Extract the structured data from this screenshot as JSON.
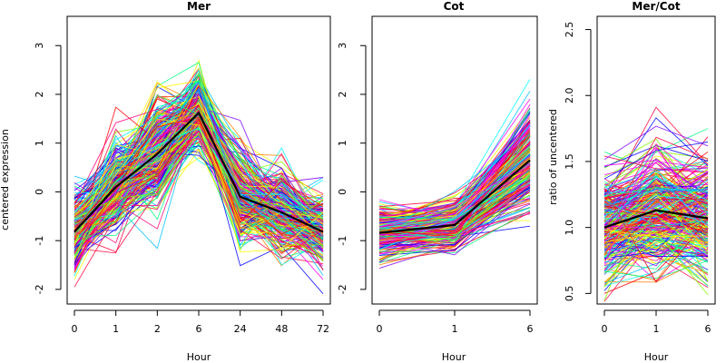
{
  "chart_data": [
    {
      "type": "line",
      "title": "Mer",
      "xlabel": "Hour",
      "ylabel": "centered expression",
      "x": [
        "0",
        "1",
        "2",
        "6",
        "24",
        "48",
        "72"
      ],
      "xticks": [
        "0",
        "1",
        "2",
        "6",
        "24",
        "48",
        "72"
      ],
      "ylim": [
        -2.3,
        3.6
      ],
      "yticks": [
        "-2",
        "-1",
        "0",
        "1",
        "2",
        "3"
      ],
      "grid": false,
      "legend": "none",
      "mean_series": {
        "values": [
          -0.82,
          0.1,
          0.78,
          1.62,
          -0.1,
          -0.42,
          -0.82
        ],
        "color": "#000000"
      },
      "profile_count_estimate": 300,
      "profile_spread": [
        0.35,
        0.45,
        0.55,
        0.35,
        0.45,
        0.4,
        0.35
      ],
      "profile_colors": [
        "#ff0040",
        "#ff0080",
        "#ff00ff",
        "#0000ff",
        "#00bfff",
        "#00ff80",
        "#80ff00",
        "#ffff00",
        "#ff8000",
        "#ff0000",
        "#8000ff",
        "#00ffff"
      ]
    },
    {
      "type": "line",
      "title": "Cot",
      "xlabel": "Hour",
      "ylabel": "",
      "x": [
        "0",
        "1",
        "6"
      ],
      "xticks": [
        "0",
        "1",
        "6"
      ],
      "ylim": [
        -2.3,
        3.6
      ],
      "yticks": [
        "-2",
        "-1",
        "0",
        "1",
        "2",
        "3"
      ],
      "grid": false,
      "legend": "none",
      "mean_series": {
        "values": [
          -0.84,
          -0.68,
          0.65
        ],
        "color": "#000000"
      },
      "profile_count_estimate": 300,
      "profile_spread": [
        0.22,
        0.18,
        0.45
      ],
      "profile_colors": [
        "#ff0040",
        "#ff0080",
        "#ff00ff",
        "#0000ff",
        "#00bfff",
        "#00ff80",
        "#80ff00",
        "#ffff00",
        "#ff8000",
        "#ff0000",
        "#8000ff",
        "#00ffff"
      ]
    },
    {
      "type": "line",
      "title": "Mer/Cot",
      "xlabel": "Hour",
      "ylabel": "ratio of uncentered",
      "x": [
        "0",
        "1",
        "6"
      ],
      "xticks": [
        "0",
        "1",
        "6"
      ],
      "ylim": [
        0.42,
        2.6
      ],
      "yticks": [
        "0.5",
        "1.0",
        "1.5",
        "2.0",
        "2.5"
      ],
      "grid": false,
      "legend": "none",
      "mean_series": {
        "values": [
          1.0,
          1.13,
          1.07
        ],
        "color": "#000000"
      },
      "profile_count_estimate": 300,
      "profile_spread": [
        0.14,
        0.16,
        0.15
      ],
      "profile_colors": [
        "#ff0040",
        "#ff0080",
        "#ff00ff",
        "#0000ff",
        "#00bfff",
        "#00ff80",
        "#80ff00",
        "#ffff00",
        "#ff8000",
        "#ff0000",
        "#8000ff",
        "#00ffff"
      ]
    }
  ]
}
